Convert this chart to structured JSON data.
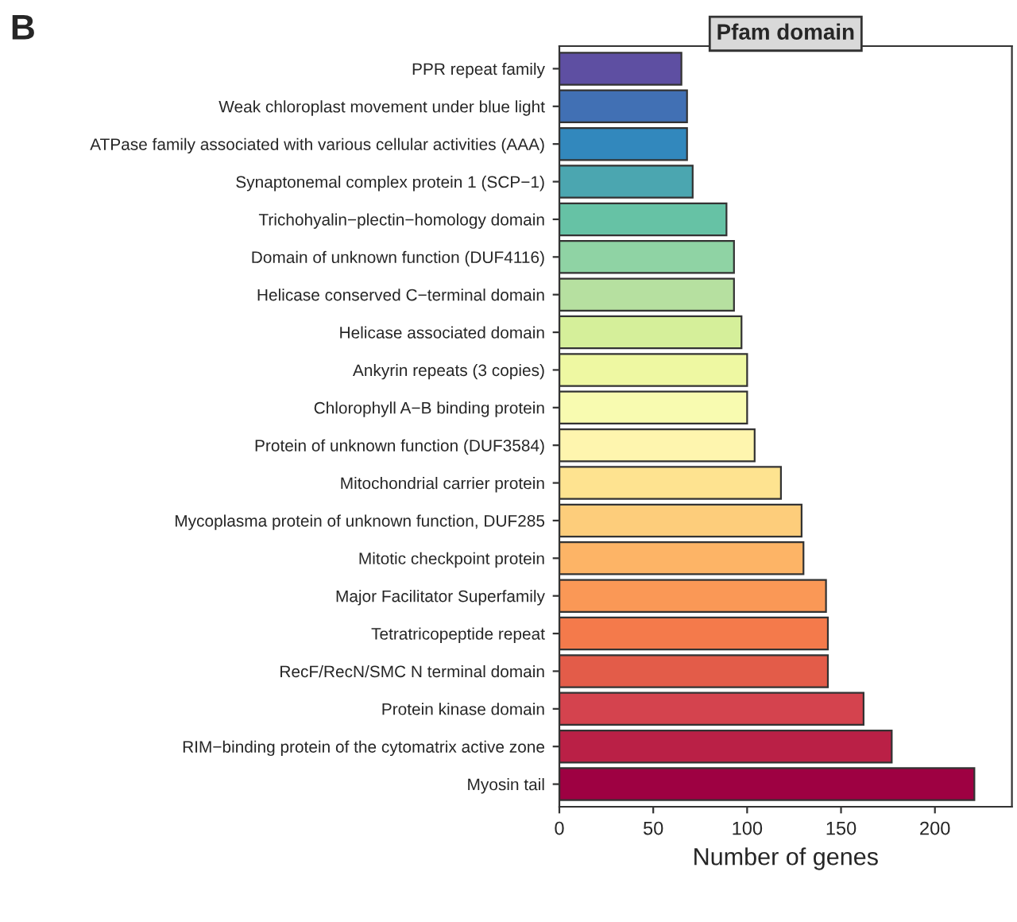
{
  "chart_data": {
    "type": "bar",
    "orientation": "horizontal",
    "title": "Pfam domain",
    "xlabel": "Number of genes",
    "annotations": [
      "B"
    ],
    "categories": [
      "PPR repeat family",
      "Weak chloroplast movement under blue light",
      "ATPase family associated with various cellular activities (AAA)",
      "Synaptonemal complex protein 1 (SCP−1)",
      "Trichohyalin−plectin−homology domain",
      "Domain of unknown function (DUF4116)",
      "Helicase conserved C−terminal domain",
      "Helicase associated domain",
      "Ankyrin repeats (3 copies)",
      "Chlorophyll A−B binding protein",
      "Protein of unknown function (DUF3584)",
      "Mitochondrial carrier protein",
      "Mycoplasma protein of unknown function, DUF285",
      "Mitotic checkpoint protein",
      "Major Facilitator Superfamily",
      "Tetratricopeptide repeat",
      "RecF/RecN/SMC N terminal domain",
      "Protein kinase domain",
      "RIM−binding protein of the cytomatrix active zone",
      "Myosin tail"
    ],
    "values": [
      65,
      68,
      68,
      71,
      89,
      93,
      93,
      97,
      100,
      100,
      104,
      118,
      129,
      130,
      142,
      143,
      143,
      162,
      177,
      221
    ],
    "colors": [
      "#5e4fa2",
      "#4170b4",
      "#3288bd",
      "#4ba6b0",
      "#66c2a5",
      "#8fd3a4",
      "#b6e0a0",
      "#d5ef9a",
      "#eef8a2",
      "#f8fbb0",
      "#fef5ae",
      "#fee390",
      "#fdcd7b",
      "#fdb466",
      "#fa9856",
      "#f47a4b",
      "#e35c49",
      "#d4434e",
      "#ba2046",
      "#9e0142"
    ],
    "xlim": [
      0,
      241
    ],
    "xticks": [
      0,
      50,
      100,
      150,
      200
    ],
    "grid": false
  }
}
